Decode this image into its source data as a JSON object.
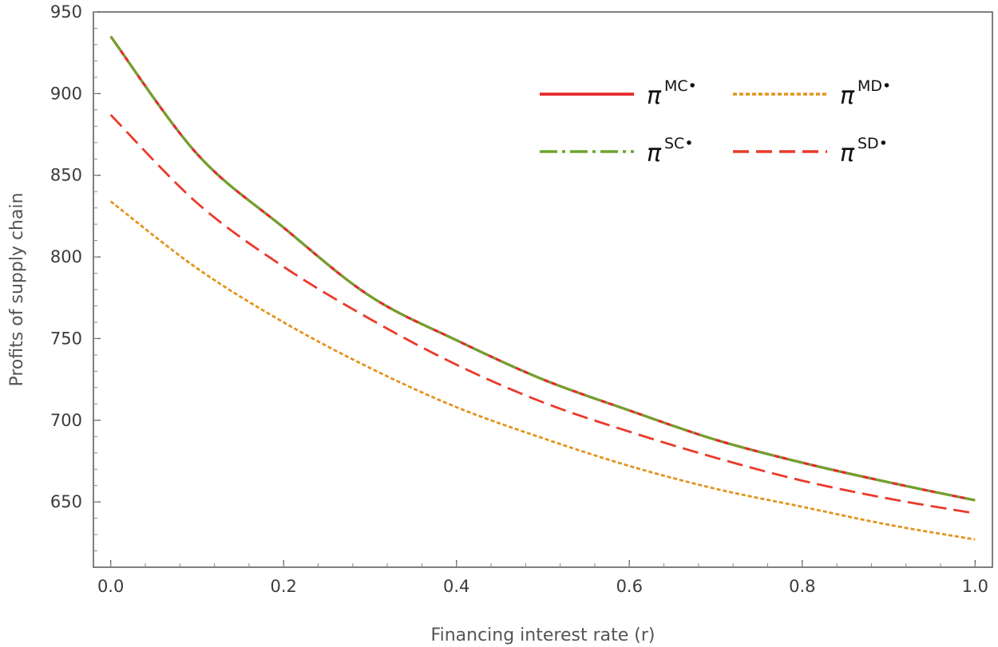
{
  "chart_data": {
    "type": "line",
    "title": "",
    "xlabel": "Financing interest rate (r)",
    "ylabel": "Profits of supply chain",
    "xlim": [
      -0.02,
      1.02
    ],
    "ylim": [
      610,
      950
    ],
    "xticks": [
      0.0,
      0.2,
      0.4,
      0.6,
      0.8,
      1.0
    ],
    "xtick_labels": [
      "0.0",
      "0.2",
      "0.4",
      "0.6",
      "0.8",
      "1.0"
    ],
    "yticks": [
      650,
      700,
      750,
      800,
      850,
      900,
      950
    ],
    "ytick_labels": [
      "650",
      "700",
      "750",
      "800",
      "850",
      "900",
      "950"
    ],
    "grid": false,
    "legend_position": "top-right",
    "x": [
      0.0,
      0.1,
      0.2,
      0.3,
      0.4,
      0.5,
      0.6,
      0.7,
      0.8,
      0.9,
      1.0
    ],
    "series": [
      {
        "name": "π",
        "superscript": "MC•",
        "color": "#e8262d",
        "style": "solid",
        "values": [
          935,
          863,
          818,
          776,
          749,
          725,
          706,
          688,
          674,
          662,
          651
        ]
      },
      {
        "name": "π",
        "superscript": "MD•",
        "color": "#e3931c",
        "style": "dotted",
        "values": [
          834,
          793,
          760,
          732,
          708,
          689,
          672,
          658,
          647,
          636,
          627
        ]
      },
      {
        "name": "π",
        "superscript": "SC•",
        "color": "#6aa52c",
        "style": "dashdot",
        "values": [
          935,
          863,
          818,
          776,
          749,
          725,
          706,
          688,
          674,
          662,
          651
        ]
      },
      {
        "name": "π",
        "superscript": "SD•",
        "color": "#ea3a2a",
        "style": "dashed",
        "values": [
          887,
          833,
          794,
          762,
          734,
          711,
          693,
          677,
          663,
          652,
          643
        ]
      }
    ]
  }
}
